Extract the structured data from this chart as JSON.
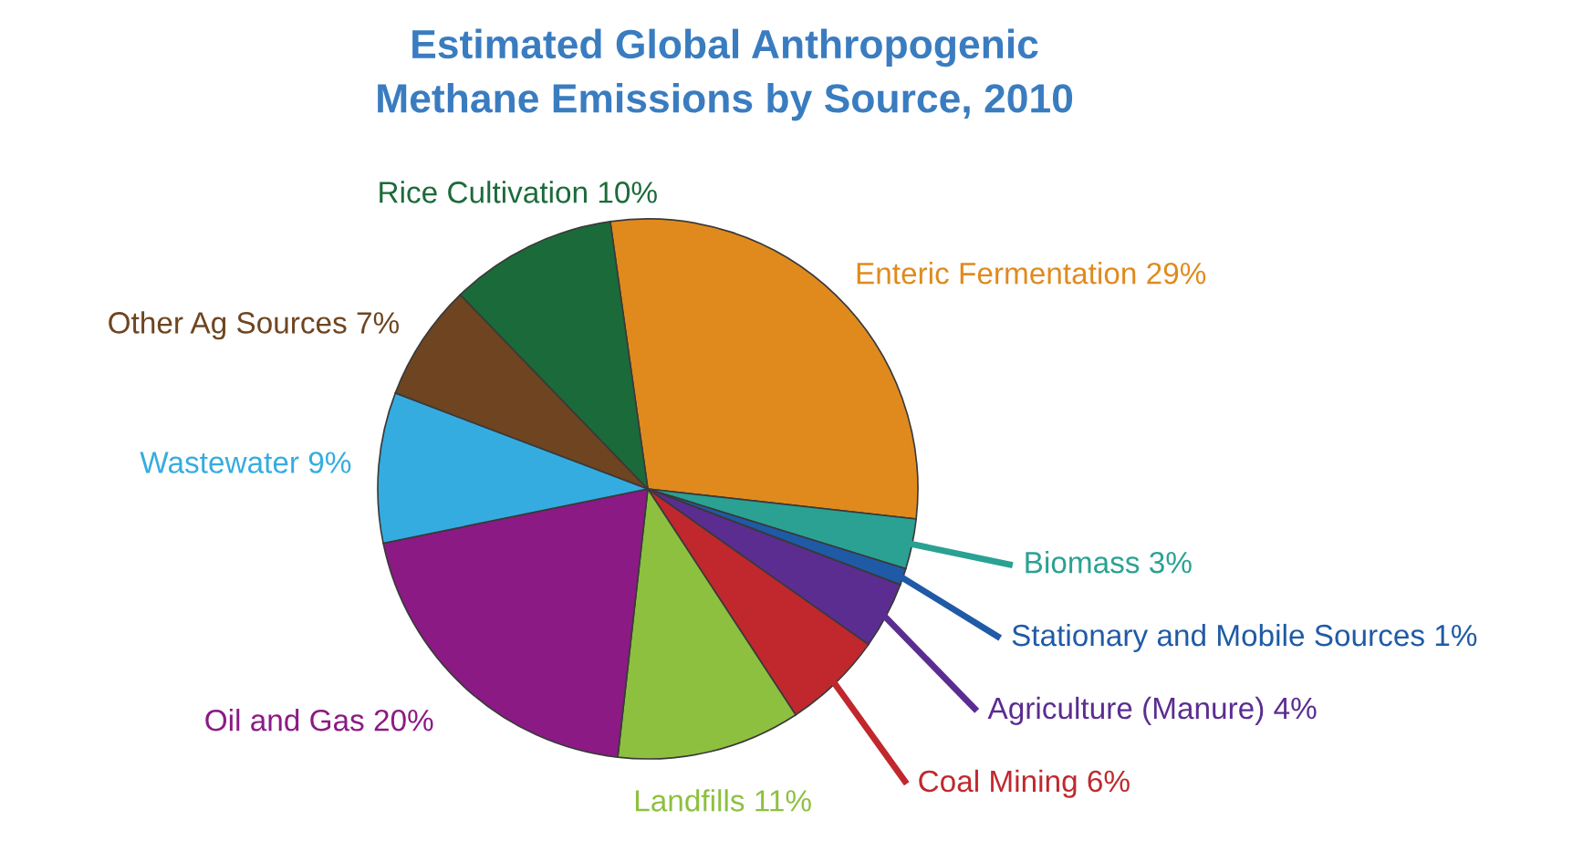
{
  "chart_data": {
    "type": "pie",
    "title": "Estimated Global Anthropogenic\nMethane Emissions by Source, 2010",
    "categories": [
      "Enteric Fermentation",
      "Biomass",
      "Stationary and Mobile Sources",
      "Agriculture (Manure)",
      "Coal Mining",
      "Landfills",
      "Oil and Gas",
      "Wastewater",
      "Other Ag Sources",
      "Rice Cultivation"
    ],
    "values": [
      29,
      3,
      1,
      4,
      6,
      11,
      20,
      9,
      7,
      10
    ],
    "value_labels": [
      "29%",
      "3%",
      "1%",
      "4%",
      "6%",
      "11%",
      "20%",
      "9%",
      "7%",
      "10%"
    ],
    "colors": [
      "#e08a1e",
      "#2aa193",
      "#1f5aa6",
      "#5b2d91",
      "#c0282d",
      "#8dc03f",
      "#8b1a85",
      "#35ace0",
      "#6e4520",
      "#1b6b3a"
    ]
  }
}
